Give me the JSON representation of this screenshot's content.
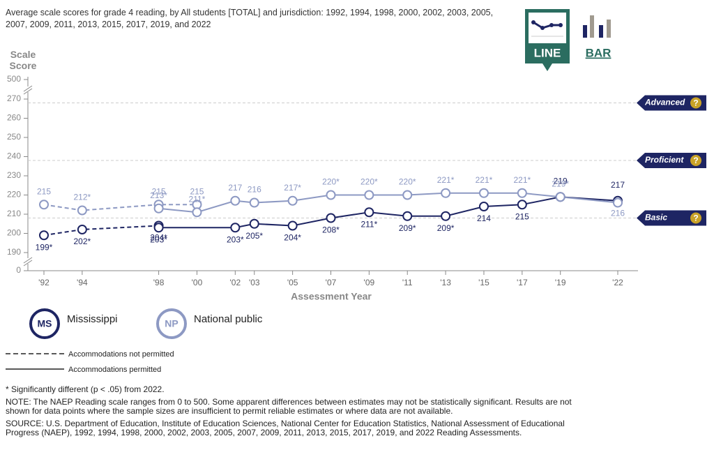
{
  "chart_data": {
    "type": "line",
    "title": "Average scale scores for grade 4 reading, by All students [TOTAL] and jurisdiction: 1992, 1994, 1998, 2000, 2002, 2003, 2005, 2007, 2009, 2011, 2013, 2015, 2017, 2019, and 2022",
    "ylabel": "Scale Score",
    "xlabel": "Assessment Year",
    "view_options": [
      "LINE",
      "BAR"
    ],
    "selected_view": 0,
    "xlim": [
      1992,
      2022
    ],
    "xticks": [
      {
        "value": 1992,
        "label": "'92"
      },
      {
        "value": 1994,
        "label": "'94"
      },
      {
        "value": 1998,
        "label": "'98"
      },
      {
        "value": 2000,
        "label": "'00"
      },
      {
        "value": 2002,
        "label": "'02"
      },
      {
        "value": 2003,
        "label": "'03"
      },
      {
        "value": 2005,
        "label": "'05"
      },
      {
        "value": 2007,
        "label": "'07"
      },
      {
        "value": 2009,
        "label": "'09"
      },
      {
        "value": 2011,
        "label": "'11"
      },
      {
        "value": 2013,
        "label": "'13"
      },
      {
        "value": 2015,
        "label": "'15"
      },
      {
        "value": 2017,
        "label": "'17"
      },
      {
        "value": 2019,
        "label": "'19"
      },
      {
        "value": 2022,
        "label": "'22"
      }
    ],
    "ylim": [
      180,
      280
    ],
    "yticks": [
      0,
      190,
      200,
      210,
      220,
      230,
      240,
      250,
      260,
      270,
      500
    ],
    "axis_break": true,
    "levels": [
      {
        "name": "Advanced",
        "value": 268
      },
      {
        "name": "Proficient",
        "value": 238
      },
      {
        "name": "Basic",
        "value": 208
      }
    ],
    "line_styles": [
      "Accommodations not permitted",
      "Accommodations permitted"
    ],
    "series": [
      {
        "name": "Mississippi",
        "abbr": "MS",
        "color": "#1e2563",
        "segments": [
          {
            "dashed": true,
            "x": [
              1992,
              1994,
              1998
            ],
            "values": [
              199,
              202,
              204
            ],
            "value_labels": [
              "199*",
              "202*",
              "204*"
            ]
          },
          {
            "dashed": false,
            "x": [
              1998,
              2002,
              2003,
              2005,
              2007,
              2009,
              2011,
              2013,
              2015,
              2017,
              2019,
              2022
            ],
            "values": [
              203,
              203,
              205,
              204,
              208,
              211,
              209,
              209,
              214,
              215,
              219,
              217
            ],
            "value_labels": [
              "203*",
              "203*",
              "205*",
              "204*",
              "208*",
              "211*",
              "209*",
              "209*",
              "214",
              "215",
              "219",
              "217"
            ]
          }
        ]
      },
      {
        "name": "National public",
        "abbr": "NP",
        "color": "#8d99c3",
        "segments": [
          {
            "dashed": true,
            "x": [
              1992,
              1994,
              1998,
              2000
            ],
            "values": [
              215,
              212,
              215,
              215
            ],
            "value_labels": [
              "215",
              "212*",
              "215",
              "215"
            ]
          },
          {
            "dashed": false,
            "x": [
              1998,
              2000,
              2002,
              2003,
              2005,
              2007,
              2009,
              2011,
              2013,
              2015,
              2017,
              2019,
              2022
            ],
            "values": [
              213,
              211,
              217,
              216,
              217,
              220,
              220,
              220,
              221,
              221,
              221,
              219,
              216
            ],
            "value_labels": [
              "213*",
              "211*",
              "217",
              "216",
              "217*",
              "220*",
              "220*",
              "220*",
              "221*",
              "221*",
              "221*",
              "219*",
              "216"
            ]
          }
        ]
      }
    ],
    "notes": [
      "* Significantly different (p < .05) from 2022.",
      "NOTE: The NAEP Reading scale ranges from 0 to 500. Some apparent differences between estimates may not be statistically significant. Results are not shown for data points where the sample sizes are insufficient to permit reliable estimates or where data are not available.",
      "SOURCE: U.S. Department of Education, Institute of Education Sciences, National Center for Education Statistics, National Assessment of Educational Progress (NAEP), 1992, 1994, 1998, 2000, 2002, 2003, 2005, 2007, 2009, 2011, 2013, 2015, 2017, 2019, and 2022 Reading Assessments."
    ]
  }
}
